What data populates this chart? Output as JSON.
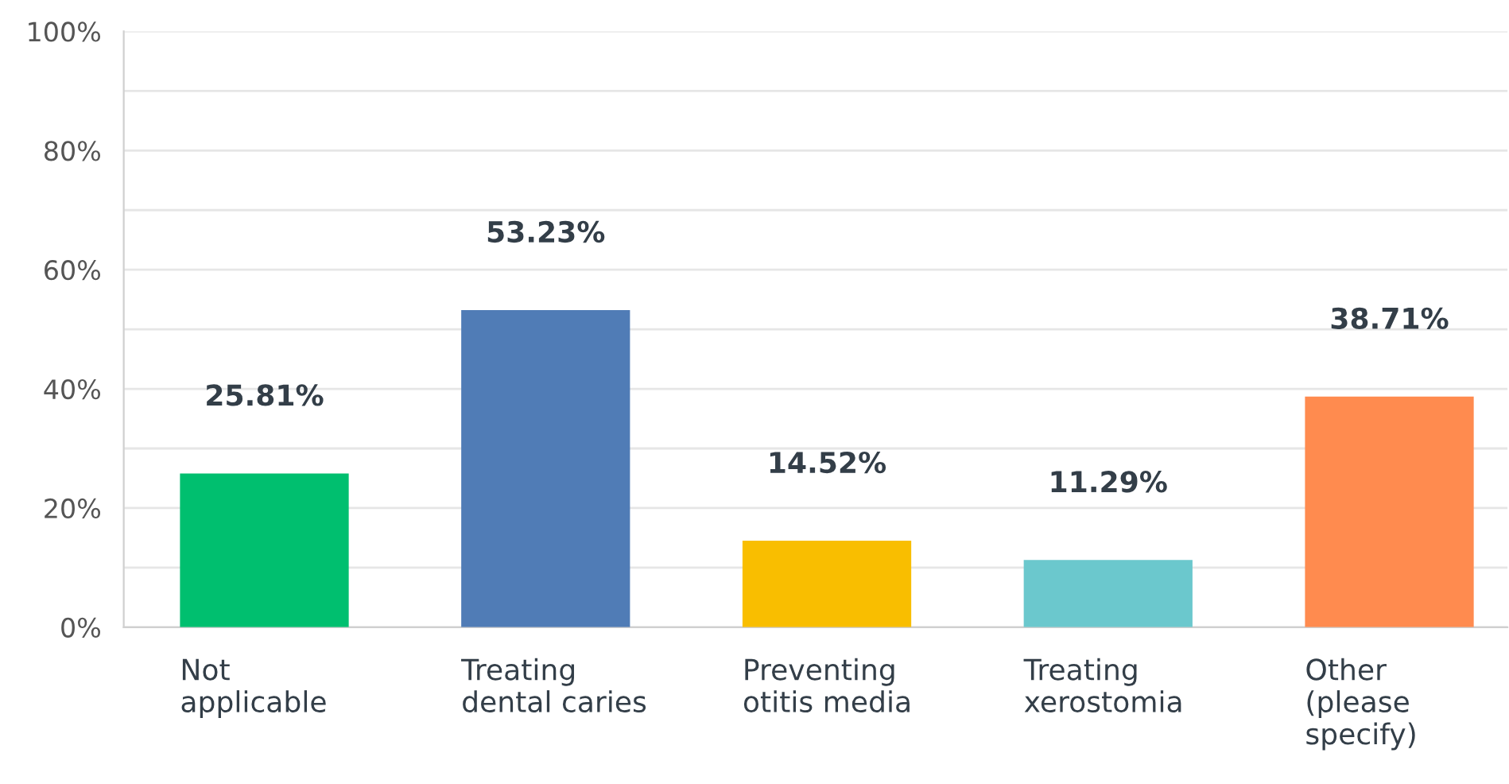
{
  "chart_data": {
    "type": "bar",
    "categories": [
      "Not\napplicable",
      "Treating\ndental caries",
      "Preventing\notitis media",
      "Treating\nxerostomia",
      "Other\n(please\nspecify)"
    ],
    "values": [
      25.81,
      53.23,
      14.52,
      11.29,
      38.71
    ],
    "colors": [
      "#00bf6f",
      "#507cb6",
      "#f9be00",
      "#6bc8cd",
      "#ff8b4f"
    ],
    "value_labels": [
      "25.81%",
      "53.23%",
      "14.52%",
      "11.29%",
      "38.71%"
    ],
    "ylim": [
      0,
      100
    ],
    "yticks": [
      {
        "value": 0,
        "label": "0%"
      },
      {
        "value": 10,
        "label": null
      },
      {
        "value": 20,
        "label": "20%"
      },
      {
        "value": 30,
        "label": null
      },
      {
        "value": 40,
        "label": "40%"
      },
      {
        "value": 50,
        "label": null
      },
      {
        "value": 60,
        "label": "60%"
      },
      {
        "value": 70,
        "label": null
      },
      {
        "value": 80,
        "label": "80%"
      },
      {
        "value": 90,
        "label": null
      },
      {
        "value": 100,
        "label": "100%"
      }
    ],
    "grid": "y",
    "legend": false
  }
}
